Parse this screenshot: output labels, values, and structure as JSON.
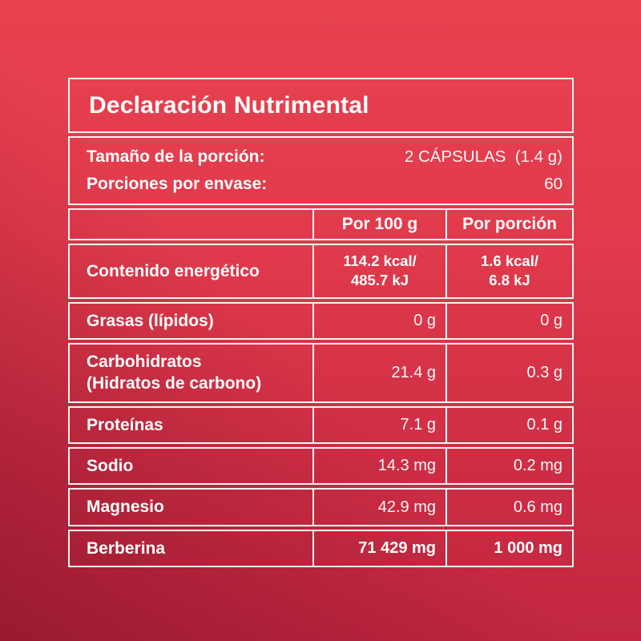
{
  "colors": {
    "background_top": "#e8424f",
    "background_bottom": "#c1273f",
    "background_corner_dark": "#9d1a31",
    "border": "#f6f0f2",
    "text": "#ffffff"
  },
  "table": {
    "title": "Declaración Nutrimental",
    "serving_info": [
      {
        "label": "Tamaño de la porción:",
        "value": "2 CÁPSULAS  (1.4 g)"
      },
      {
        "label": "Porciones por envase:",
        "value": "60"
      }
    ],
    "columns": [
      "Por 100 g",
      "Por porción"
    ],
    "rows": [
      {
        "id": "contenido-energetico",
        "label": [
          "Contenido energético"
        ],
        "per_100g": [
          "114.2 kcal/",
          "485.7 kJ"
        ],
        "per_portion": [
          "1.6 kcal/",
          "6.8 kJ"
        ],
        "emphasis": true,
        "align": "center"
      },
      {
        "id": "grasas-lipidos",
        "label": [
          "Grasas (lípidos)"
        ],
        "per_100g": [
          "0 g"
        ],
        "per_portion": [
          "0 g"
        ],
        "emphasis": false,
        "align": "right"
      },
      {
        "id": "carbohidratos",
        "label": [
          "Carbohidratos",
          "(Hidratos de carbono)"
        ],
        "per_100g": [
          "21.4 g"
        ],
        "per_portion": [
          "0.3 g"
        ],
        "emphasis": false,
        "align": "right"
      },
      {
        "id": "proteinas",
        "label": [
          "Proteínas"
        ],
        "per_100g": [
          "7.1 g"
        ],
        "per_portion": [
          "0.1 g"
        ],
        "emphasis": false,
        "align": "right"
      },
      {
        "id": "sodio",
        "label": [
          "Sodio"
        ],
        "per_100g": [
          "14.3 mg"
        ],
        "per_portion": [
          "0.2 mg"
        ],
        "emphasis": false,
        "align": "right"
      },
      {
        "id": "magnesio",
        "label": [
          "Magnesio"
        ],
        "per_100g": [
          "42.9 mg"
        ],
        "per_portion": [
          "0.6 mg"
        ],
        "emphasis": false,
        "align": "right"
      },
      {
        "id": "berberina",
        "label": [
          "Berberina"
        ],
        "per_100g": [
          "71 429 mg"
        ],
        "per_portion": [
          "1 000 mg"
        ],
        "emphasis": true,
        "align": "right"
      }
    ]
  }
}
